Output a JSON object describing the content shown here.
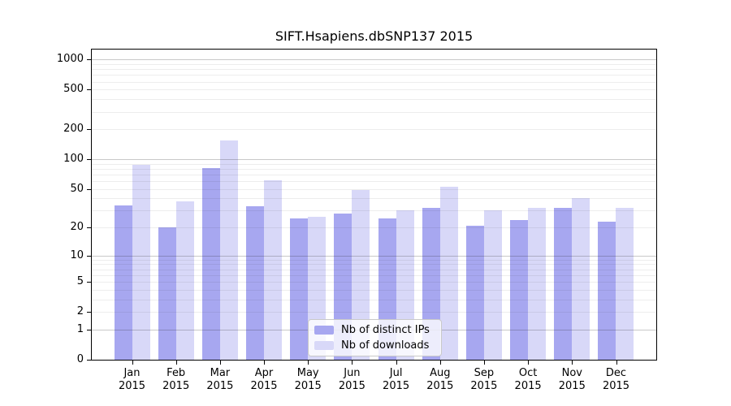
{
  "title": "SIFT.Hsapiens.dbSNP137 2015",
  "year_label": "2015",
  "months": [
    "Jan",
    "Feb",
    "Mar",
    "Apr",
    "May",
    "Jun",
    "Jul",
    "Aug",
    "Sep",
    "Oct",
    "Nov",
    "Dec"
  ],
  "legend": {
    "items": [
      {
        "label": "Nb of distinct IPs"
      },
      {
        "label": "Nb of downloads"
      }
    ]
  },
  "chart_data": {
    "type": "bar",
    "title": "SIFT.Hsapiens.dbSNP137 2015",
    "categories": [
      "Jan 2015",
      "Feb 2015",
      "Mar 2015",
      "Apr 2015",
      "May 2015",
      "Jun 2015",
      "Jul 2015",
      "Aug 2015",
      "Sep 2015",
      "Oct 2015",
      "Nov 2015",
      "Dec 2015"
    ],
    "series": [
      {
        "name": "Nb of distinct IPs",
        "color": "#a7a7f0",
        "values": [
          34,
          20,
          81,
          33,
          25,
          28,
          25,
          32,
          21,
          24,
          32,
          23
        ]
      },
      {
        "name": "Nb of downloads",
        "color": "#d8d8f8",
        "values": [
          87,
          37,
          155,
          61,
          26,
          49,
          30,
          53,
          30,
          32,
          40,
          32
        ]
      }
    ],
    "xlabel": "",
    "ylabel": "",
    "yscale": "log10(value+1)",
    "yticks": [
      1000,
      500,
      200,
      100,
      50,
      20,
      10,
      5,
      2,
      1,
      0
    ],
    "ylim": [
      0,
      1260
    ],
    "grid": "horizontal",
    "gridline_color_decade": "#c8c8c8",
    "gridline_color_minor": "#ececec",
    "legend_position": "inside-bottom-center"
  }
}
